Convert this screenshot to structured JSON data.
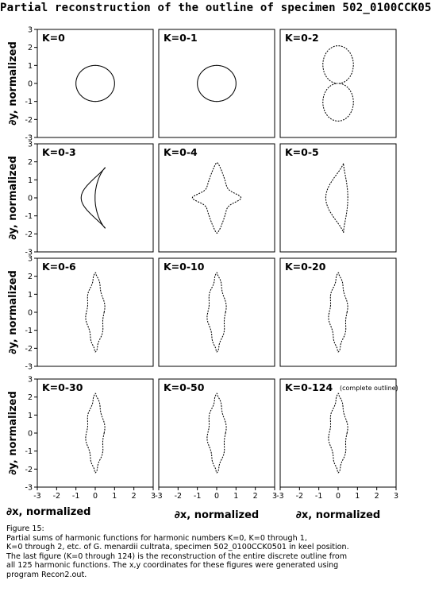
{
  "title": "Partial reconstruction of the outline of specimen 502_0100CCK0501",
  "axis": {
    "ylabel": "∂y, normalized",
    "xlabel": "∂x, normalized",
    "ticks": [
      "-3",
      "-2",
      "-1",
      "0",
      "1",
      "2",
      "3"
    ]
  },
  "chart_data": {
    "type": "line",
    "title": "Partial reconstruction of the outline of specimen 502_0100CCK0501",
    "xlabel": "∂x, normalized",
    "ylabel": "∂y, normalized",
    "xlim": [
      -3,
      3
    ],
    "ylim": [
      -3,
      3
    ],
    "grid": false,
    "panels": [
      {
        "label": "K=0",
        "kind": "circle"
      },
      {
        "label": "K=0-1",
        "kind": "circle"
      },
      {
        "label": "K=0-2",
        "kind": "figure8"
      },
      {
        "label": "K=0-3",
        "kind": "bean"
      },
      {
        "label": "K=0-4",
        "kind": "cross"
      },
      {
        "label": "K=0-5",
        "kind": "lobe"
      },
      {
        "label": "K=0-6",
        "kind": "spindle"
      },
      {
        "label": "K=0-10",
        "kind": "spindle"
      },
      {
        "label": "K=0-20",
        "kind": "spindle"
      },
      {
        "label": "K=0-30",
        "kind": "spindle"
      },
      {
        "label": "K=0-50",
        "kind": "spindle"
      },
      {
        "label": "K=0-124",
        "note": "(complete outline)",
        "kind": "spindle"
      }
    ]
  },
  "caption": [
    "Figure 15:",
    "Partial sums of harmonic functions for harmonic numbers K=0, K=0 through 1,",
    "K=0 through 2, etc. of G. menardii cultrata, specimen 502_0100CCK0501 in keel position.",
    "The last figure (K=0 through 124) is the reconstruction of the entire discrete outline from",
    "all 125 harmonic functions. The x,y coordinates for these figures were generated using",
    "program Recon2.out."
  ]
}
